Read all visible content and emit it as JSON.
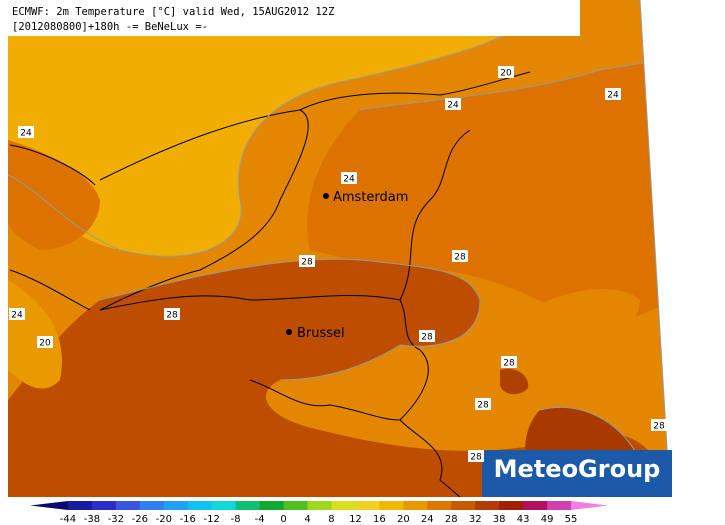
{
  "header": {
    "line1": "ECMWF: 2m Temperature [°C] valid Wed, 15AUG2012 12Z",
    "line2": "[2012080800]+180h  -= BeNeLux =-"
  },
  "cities": [
    {
      "name": "Amsterdam"
    },
    {
      "name": "Brussel"
    }
  ],
  "contour_labels": [
    20,
    24,
    24,
    24,
    24,
    28,
    28,
    24,
    20,
    28,
    28,
    28,
    28,
    28,
    28
  ],
  "logo": "MeteoGroup",
  "legend": {
    "ticks": [
      -44,
      -38,
      -32,
      -26,
      -20,
      -16,
      -12,
      -8,
      -4,
      0,
      4,
      8,
      12,
      16,
      20,
      24,
      28,
      32,
      38,
      43,
      49,
      55
    ],
    "colors": [
      "#0a0a6e",
      "#1a1a9e",
      "#2c2cc8",
      "#3a55e0",
      "#2f7ff0",
      "#1fa2f5",
      "#10c0f0",
      "#10d8d8",
      "#10c070",
      "#10a830",
      "#50c020",
      "#a0d820",
      "#d8e020",
      "#f0d020",
      "#f0b800",
      "#e89a00",
      "#dc7800",
      "#c85a00",
      "#b43c00",
      "#a02000",
      "#b01060",
      "#d040b0",
      "#f080e0"
    ]
  }
}
